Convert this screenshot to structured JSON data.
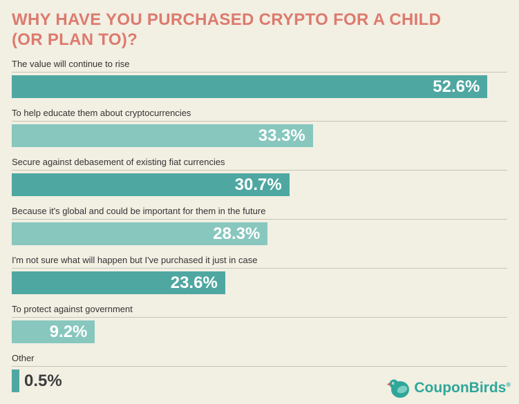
{
  "title": {
    "line1": "WHY HAVE YOU PURCHASED CRYPTO FOR A CHILD",
    "line2": "(OR PLAN TO)?"
  },
  "colors": {
    "background": "#f2efe3",
    "title": "#dd7a6e",
    "bar_dark": "#4fa7a1",
    "bar_light": "#87c7be",
    "rule": "#c8c4b6",
    "label_text": "#333333",
    "value_inside": "#ffffff",
    "value_outside": "#3d3d3d",
    "brand": "#2ea79a"
  },
  "chart_data": {
    "type": "bar",
    "orientation": "horizontal",
    "title": "WHY HAVE YOU PURCHASED CRYPTO FOR A CHILD (OR PLAN TO)?",
    "categories": [
      "The value will continue to rise",
      "To help educate them about cryptocurrencies",
      "Secure against debasement of existing fiat currencies",
      "Because it's global and could be important for them in the future",
      "I'm not sure what will happen but I've purchased it just in case",
      "To protect against government",
      "Other"
    ],
    "values": [
      52.6,
      33.3,
      30.7,
      28.3,
      23.6,
      9.2,
      0.5
    ],
    "value_labels": [
      "52.6%",
      "33.3%",
      "30.7%",
      "28.3%",
      "23.6%",
      "9.2%",
      "0.5%"
    ],
    "xlim": [
      0,
      54.8
    ],
    "grid": false,
    "legend": false,
    "bar_color_pattern": [
      "#4fa7a1",
      "#87c7be"
    ]
  },
  "branding": {
    "logo_text": "CouponBirds",
    "registered_mark": "®",
    "logo_icon": "bird-icon"
  }
}
